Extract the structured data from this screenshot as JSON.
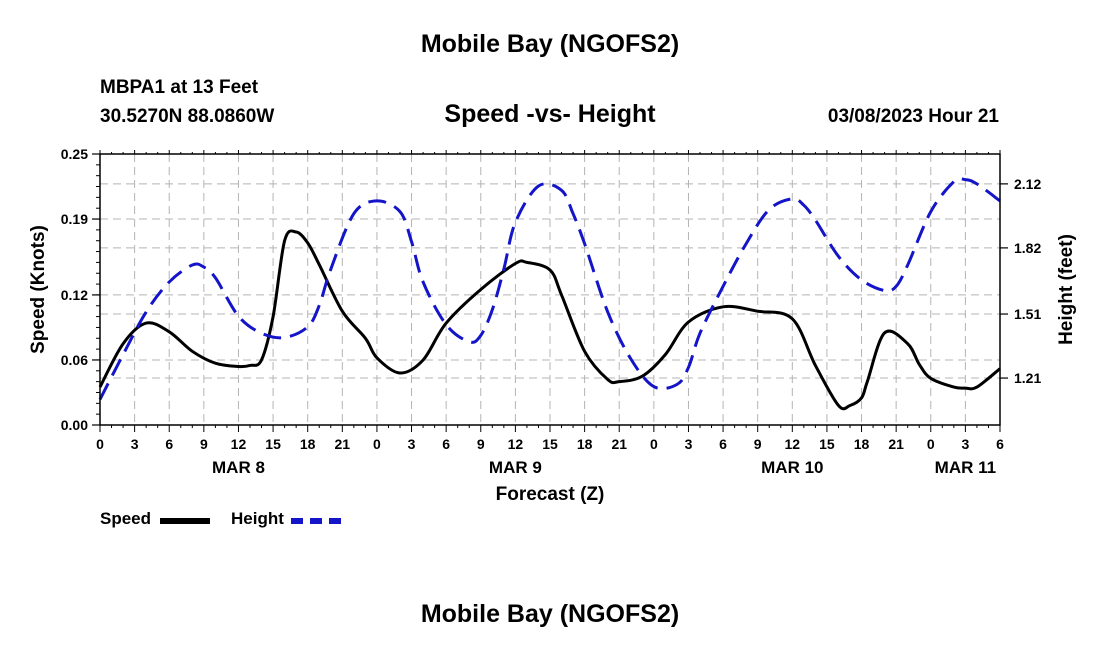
{
  "page": {
    "title_top": "Mobile Bay (NGOFS2)",
    "title_bottom": "Mobile Bay (NGOFS2)",
    "station_label": "MBPA1 at 13 Feet",
    "coords_label": "30.5270N  88.0860W",
    "subtitle": "Speed -vs- Height",
    "datetime_label": "03/08/2023 Hour 21"
  },
  "colors": {
    "speed": "#000000",
    "height": "#1414c8",
    "grid": "#b4b4b4"
  },
  "chart_data": {
    "type": "line",
    "title": "Speed -vs- Height",
    "xlabel": "Forecast (Z)",
    "ylabel": "Speed (Knots)",
    "y2label": "Height (feet)",
    "x_unit": "hours since MAR 8 00Z",
    "xlim": [
      0,
      78
    ],
    "ylim": [
      0,
      0.25
    ],
    "y2lim": [
      0.99,
      2.26
    ],
    "x_tick_values": [
      0,
      3,
      6,
      9,
      12,
      15,
      18,
      21,
      24,
      27,
      30,
      33,
      36,
      39,
      42,
      45,
      48,
      51,
      54,
      57,
      60,
      63,
      66,
      69,
      72,
      75,
      78
    ],
    "x_tick_labels": [
      "0",
      "3",
      "6",
      "9",
      "12",
      "15",
      "18",
      "21",
      "0",
      "3",
      "6",
      "9",
      "12",
      "15",
      "18",
      "21",
      "0",
      "3",
      "6",
      "9",
      "12",
      "15",
      "18",
      "21",
      "0",
      "3",
      "6"
    ],
    "date_labels": [
      {
        "x": 12,
        "label": "MAR 8"
      },
      {
        "x": 36,
        "label": "MAR 9"
      },
      {
        "x": 60,
        "label": "MAR 10"
      },
      {
        "x": 75,
        "label": "MAR 11"
      }
    ],
    "y_ticks": [
      0.0,
      0.06,
      0.12,
      0.19,
      0.25
    ],
    "y_tick_labels": [
      "0.00",
      "0.06",
      "0.12",
      "0.19",
      "0.25"
    ],
    "y2_ticks": [
      1.21,
      1.51,
      1.82,
      2.12
    ],
    "y2_tick_labels": [
      "1.21",
      "1.51",
      "1.82",
      "2.12"
    ],
    "grid": true,
    "legend": [
      {
        "name": "Speed",
        "style": "solid"
      },
      {
        "name": "Height",
        "style": "dashed"
      }
    ],
    "series": [
      {
        "name": "Speed",
        "axis": "left",
        "style": "solid",
        "x": [
          0,
          2,
          4,
          6,
          8,
          10,
          12,
          13,
          14,
          15,
          16,
          17,
          18,
          19,
          21,
          23,
          24,
          26,
          28,
          30,
          33,
          36,
          37,
          39,
          40,
          42,
          44,
          45,
          47,
          49,
          51,
          54,
          57,
          60,
          62,
          64,
          65,
          66,
          66.5,
          68,
          70,
          71,
          72,
          74,
          75,
          76,
          78
        ],
        "values": [
          0.035,
          0.075,
          0.094,
          0.086,
          0.068,
          0.057,
          0.054,
          0.055,
          0.06,
          0.1,
          0.17,
          0.178,
          0.168,
          0.148,
          0.105,
          0.08,
          0.062,
          0.048,
          0.06,
          0.094,
          0.125,
          0.149,
          0.15,
          0.143,
          0.12,
          0.068,
          0.042,
          0.04,
          0.045,
          0.065,
          0.095,
          0.109,
          0.105,
          0.098,
          0.055,
          0.018,
          0.018,
          0.025,
          0.04,
          0.085,
          0.075,
          0.056,
          0.043,
          0.035,
          0.034,
          0.035,
          0.052
        ]
      },
      {
        "name": "Height",
        "axis": "right",
        "style": "dashed",
        "x": [
          0,
          2,
          4,
          6,
          8,
          9,
          10,
          12,
          14,
          16,
          18,
          19,
          20,
          22,
          24,
          26,
          27,
          28,
          30,
          32,
          33,
          34,
          35,
          36,
          38,
          40,
          41,
          42,
          44,
          46,
          48,
          50,
          51,
          52,
          54,
          56,
          58,
          60,
          61,
          62,
          64,
          66,
          68,
          69,
          70,
          72,
          74,
          75,
          76,
          78
        ],
        "values": [
          1.11,
          1.32,
          1.52,
          1.66,
          1.74,
          1.73,
          1.68,
          1.5,
          1.42,
          1.4,
          1.45,
          1.55,
          1.72,
          1.98,
          2.04,
          1.99,
          1.85,
          1.66,
          1.46,
          1.38,
          1.41,
          1.53,
          1.72,
          1.94,
          2.11,
          2.09,
          1.98,
          1.84,
          1.52,
          1.3,
          1.17,
          1.18,
          1.26,
          1.42,
          1.64,
          1.84,
          2.0,
          2.05,
          2.02,
          1.95,
          1.78,
          1.67,
          1.62,
          1.64,
          1.74,
          1.99,
          2.13,
          2.14,
          2.12,
          2.04
        ]
      }
    ]
  }
}
